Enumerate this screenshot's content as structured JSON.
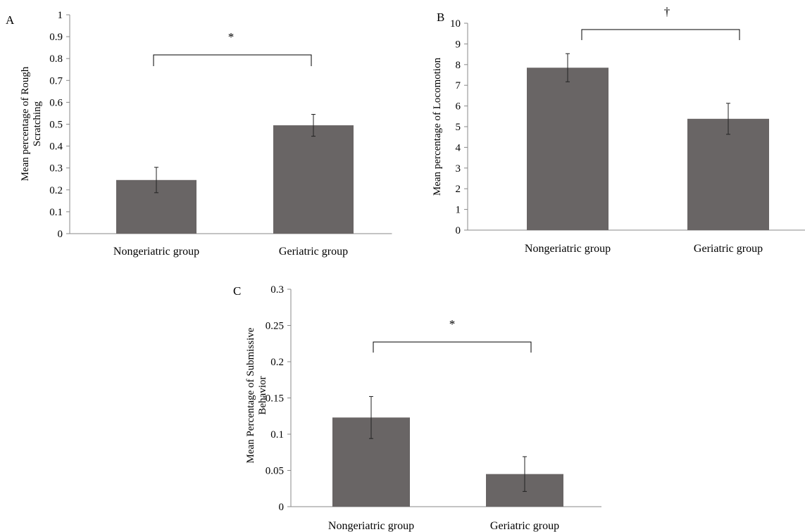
{
  "colors": {
    "bar": "#696565",
    "axis": "#888888",
    "bracket": "#000000"
  },
  "chart_data": [
    {
      "panel": "A",
      "type": "bar",
      "categories": [
        "Nongeriatric group",
        "Geriatric group"
      ],
      "values": [
        0.245,
        0.495
      ],
      "errors": [
        0.058,
        0.05
      ],
      "ylabel_lines": [
        "Mean percentage of Rough",
        "Scratching"
      ],
      "ylim": [
        0,
        1
      ],
      "yticks": [
        0,
        0.1,
        0.2,
        0.3,
        0.4,
        0.5,
        0.6,
        0.7,
        0.8,
        0.9,
        1
      ],
      "yticklabels": [
        "0",
        "0.1",
        "0.2",
        "0.3",
        "0.4",
        "0.5",
        "0.6",
        "0.7",
        "0.8",
        "0.9",
        "1"
      ],
      "significance": "*",
      "grid": false
    },
    {
      "panel": "B",
      "type": "bar",
      "categories": [
        "Nongeriatric group",
        "Geriatric group"
      ],
      "values": [
        7.85,
        5.38
      ],
      "errors": [
        0.68,
        0.75
      ],
      "ylabel_lines": [
        "Mean percentage of Locomotion"
      ],
      "ylim": [
        0,
        10
      ],
      "yticks": [
        0,
        1,
        2,
        3,
        4,
        5,
        6,
        7,
        8,
        9,
        10
      ],
      "yticklabels": [
        "0",
        "1",
        "2",
        "3",
        "4",
        "5",
        "6",
        "7",
        "8",
        "9",
        "10"
      ],
      "significance": "†",
      "grid": false
    },
    {
      "panel": "C",
      "type": "bar",
      "categories": [
        "Nongeriatric group",
        "Geriatric group"
      ],
      "values": [
        0.123,
        0.045
      ],
      "errors": [
        0.029,
        0.024
      ],
      "ylabel_lines": [
        "Mean Percentage of Submissive",
        "Behavior"
      ],
      "ylim": [
        0,
        0.3
      ],
      "yticks": [
        0,
        0.05,
        0.1,
        0.15,
        0.2,
        0.25,
        0.3
      ],
      "yticklabels": [
        "0",
        "0.05",
        "0.1",
        "0.15",
        "0.2",
        "0.25",
        "0.3"
      ],
      "significance": "*",
      "grid": false
    }
  ]
}
